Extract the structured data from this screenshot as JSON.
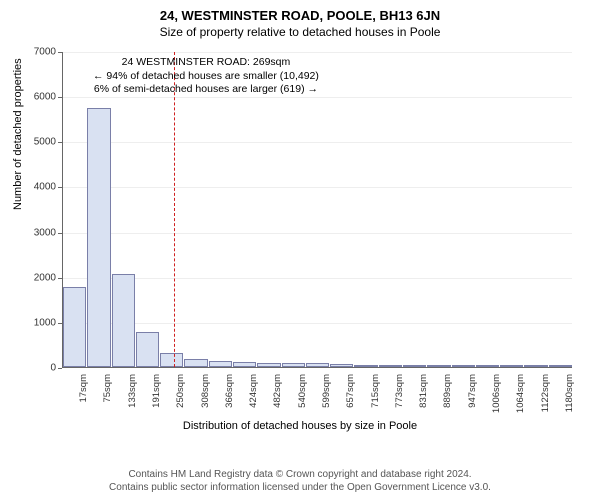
{
  "title": "24, WESTMINSTER ROAD, POOLE, BH13 6JN",
  "subtitle": "Size of property relative to detached houses in Poole",
  "chart": {
    "type": "histogram",
    "ylabel": "Number of detached properties",
    "xlabel": "Distribution of detached houses by size in Poole",
    "ylim": [
      0,
      7000
    ],
    "ytick_step": 1000,
    "bar_fill": "#d9e1f2",
    "bar_stroke": "#7a7fa8",
    "grid_color": "#eeeeee",
    "background": "#ffffff",
    "axis_color": "#666666",
    "marker_line_color": "#d02020",
    "marker_value_sqm": 269,
    "x_tick_labels": [
      "17sqm",
      "75sqm",
      "133sqm",
      "191sqm",
      "250sqm",
      "308sqm",
      "366sqm",
      "424sqm",
      "482sqm",
      "540sqm",
      "599sqm",
      "657sqm",
      "715sqm",
      "773sqm",
      "831sqm",
      "889sqm",
      "947sqm",
      "1006sqm",
      "1064sqm",
      "1122sqm",
      "1180sqm"
    ],
    "x_min": 17,
    "x_max": 1180,
    "bin_width_sqm": 58,
    "values": [
      1780,
      5740,
      2060,
      780,
      310,
      175,
      130,
      110,
      100,
      90,
      80,
      75,
      30,
      20,
      15,
      12,
      10,
      9,
      8,
      7,
      6
    ],
    "annotation": {
      "line1": "24 WESTMINSTER ROAD: 269sqm",
      "line2": "← 94% of detached houses are smaller (10,492)",
      "line3": "6% of semi-detached houses are larger (619) →"
    },
    "label_fontsize": 11,
    "tick_fontsize": 10,
    "title_fontsize": 13
  },
  "footer": {
    "line1": "Contains HM Land Registry data © Crown copyright and database right 2024.",
    "line2": "Contains public sector information licensed under the Open Government Licence v3.0."
  }
}
